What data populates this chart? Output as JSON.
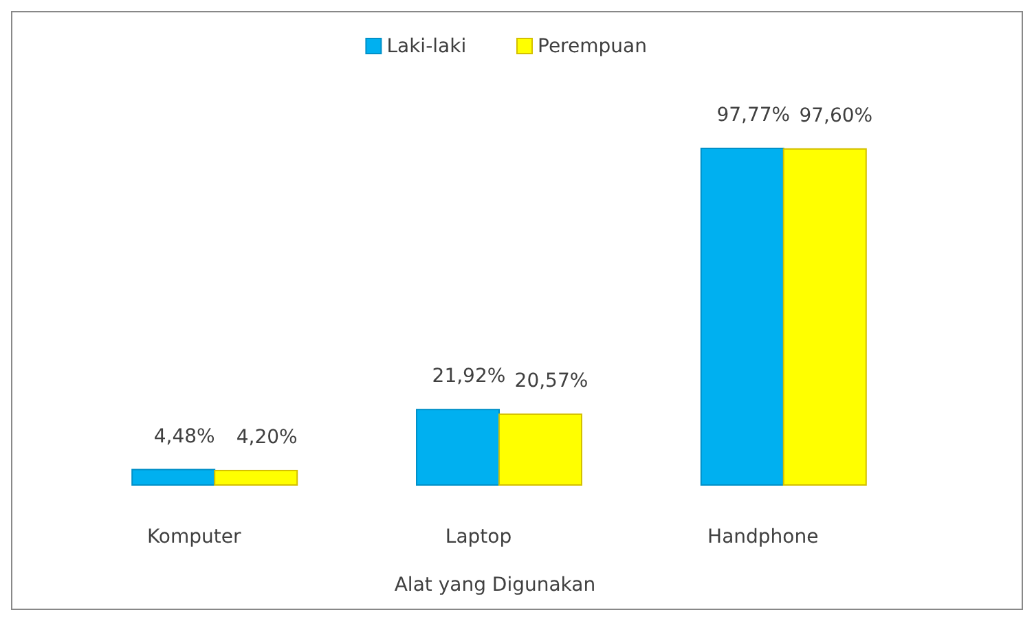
{
  "chart_data": {
    "type": "bar",
    "xlabel": "Alat yang Digunakan",
    "categories": [
      "Komputer",
      "Laptop",
      "Handphone"
    ],
    "series": [
      {
        "name": "Laki-laki",
        "color": "#00b0f0",
        "values": [
          4.48,
          21.92,
          97.77
        ],
        "value_labels": [
          "4,48%",
          "21,92%",
          "97,77%"
        ]
      },
      {
        "name": "Perempuan",
        "color": "#ffff00",
        "values": [
          4.2,
          20.57,
          97.6
        ],
        "value_labels": [
          "4,20%",
          "20,57%",
          "97,60%"
        ]
      }
    ],
    "legend": "top"
  }
}
